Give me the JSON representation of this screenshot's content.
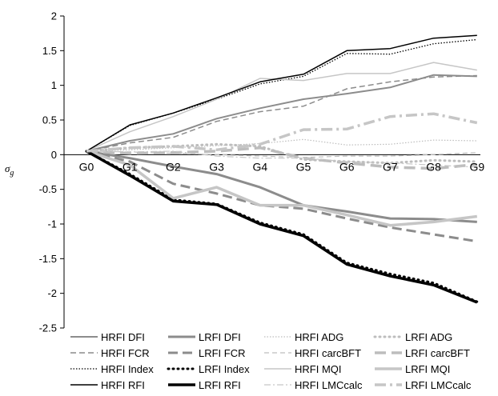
{
  "chart_data": {
    "type": "line",
    "ylabel_main": "σ",
    "ylabel_sub": "g",
    "categories": [
      "G0",
      "G1",
      "G2",
      "G3",
      "G4",
      "G5",
      "G6",
      "G7",
      "G8",
      "G9"
    ],
    "ylim": [
      -2.5,
      2
    ],
    "yticks": [
      2,
      1.5,
      1,
      0.5,
      0,
      -0.5,
      -1,
      -1.5,
      -2,
      -2.5
    ],
    "ytick_labels": [
      "2",
      "1.5",
      "1",
      "0.5",
      "0",
      "-0.5",
      "-1",
      "-1.5",
      "-2",
      "-2.5"
    ],
    "grid": false,
    "legend_position": "bottom",
    "series": [
      {
        "name": "HRFI DFI",
        "color": "#8c8c8c",
        "width": 2,
        "dash": "",
        "values": [
          0.05,
          0.2,
          0.3,
          0.52,
          0.67,
          0.8,
          0.88,
          0.97,
          1.15,
          1.13
        ]
      },
      {
        "name": "LRFI DFI",
        "color": "#8c8c8c",
        "width": 3,
        "dash": "",
        "values": [
          0.05,
          -0.05,
          -0.17,
          -0.28,
          -0.47,
          -0.73,
          -0.82,
          -0.92,
          -0.93,
          -0.97
        ]
      },
      {
        "name": "HRFI ADG",
        "color": "#bdbdbd",
        "width": 1.2,
        "dash": "1.5,2",
        "values": [
          0.05,
          0.07,
          0.1,
          0.13,
          0.16,
          0.22,
          0.14,
          0.15,
          0.21,
          0.2
        ]
      },
      {
        "name": "LRFI ADG",
        "color": "#bdbdbd",
        "width": 3,
        "dash": "1,5",
        "linecap": "round",
        "values": [
          0.05,
          0.1,
          0.12,
          0.15,
          0.12,
          -0.07,
          -0.1,
          -0.12,
          -0.08,
          -0.1
        ]
      },
      {
        "name": "HRFI FCR",
        "color": "#8c8c8c",
        "width": 1.5,
        "dash": "7,4",
        "values": [
          0.05,
          0.17,
          0.25,
          0.48,
          0.62,
          0.7,
          0.95,
          1.05,
          1.12,
          1.14
        ]
      },
      {
        "name": "LRFI FCR",
        "color": "#8c8c8c",
        "width": 3,
        "dash": "12,6",
        "values": [
          0.05,
          -0.1,
          -0.42,
          -0.56,
          -0.73,
          -0.78,
          -0.92,
          -1.05,
          -1.15,
          -1.25
        ]
      },
      {
        "name": "HRFI carcBFT",
        "color": "#bdbdbd",
        "width": 1.2,
        "dash": "6,4",
        "values": [
          0.05,
          0.04,
          0.02,
          0.0,
          -0.02,
          -0.04,
          -0.02,
          -0.02,
          0.0,
          0.03
        ]
      },
      {
        "name": "LRFI carcBFT",
        "color": "#bdbdbd",
        "width": 3.5,
        "dash": "14,7",
        "values": [
          0.05,
          0.02,
          0.03,
          0.05,
          0.1,
          -0.05,
          -0.12,
          -0.18,
          -0.2,
          -0.14
        ]
      },
      {
        "name": "HRFI Index",
        "color": "#000000",
        "width": 1.3,
        "dash": "1.5,2",
        "values": [
          0.05,
          0.42,
          0.6,
          0.8,
          1.02,
          1.13,
          1.46,
          1.45,
          1.6,
          1.66
        ]
      },
      {
        "name": "LRFI Index",
        "color": "#000000",
        "width": 3,
        "dash": "1,5",
        "linecap": "round",
        "values": [
          0.05,
          -0.28,
          -0.65,
          -0.71,
          -0.98,
          -1.15,
          -1.56,
          -1.72,
          -1.85,
          -2.12
        ]
      },
      {
        "name": "HRFI MQI",
        "color": "#c6c6c6",
        "width": 1.5,
        "dash": "",
        "values": [
          0.05,
          0.33,
          0.55,
          0.8,
          1.1,
          1.07,
          1.17,
          1.17,
          1.33,
          1.22
        ]
      },
      {
        "name": "LRFI MQI",
        "color": "#c6c6c6",
        "width": 3.5,
        "dash": "",
        "values": [
          0.05,
          -0.15,
          -0.63,
          -0.47,
          -0.73,
          -0.73,
          -0.87,
          -1.02,
          -0.97,
          -0.89
        ]
      },
      {
        "name": "HRFI RFI",
        "color": "#000000",
        "width": 1.5,
        "dash": "",
        "values": [
          0.05,
          0.43,
          0.6,
          0.82,
          1.05,
          1.16,
          1.5,
          1.53,
          1.68,
          1.72
        ]
      },
      {
        "name": "LRFI RFI",
        "color": "#000000",
        "width": 3.5,
        "dash": "",
        "values": [
          0.05,
          -0.3,
          -0.67,
          -0.72,
          -1.0,
          -1.17,
          -1.58,
          -1.75,
          -1.88,
          -2.13
        ]
      },
      {
        "name": "HRFI LMCcalc",
        "color": "#c6c6c6",
        "width": 1.2,
        "dash": "8,3,2,3",
        "values": [
          0.05,
          0.04,
          0.05,
          -0.02,
          -0.05,
          -0.05,
          -0.1,
          -0.12,
          -0.15,
          -0.18
        ]
      },
      {
        "name": "LRFI LMCcalc",
        "color": "#c6c6c6",
        "width": 3.5,
        "dash": "14,5,3,5",
        "values": [
          0.05,
          0.1,
          0.12,
          0.07,
          0.15,
          0.36,
          0.37,
          0.55,
          0.59,
          0.46
        ]
      }
    ],
    "legend_order": [
      [
        "HRFI DFI",
        "LRFI DFI",
        "HRFI ADG",
        "LRFI ADG"
      ],
      [
        "HRFI FCR",
        "LRFI FCR",
        "HRFI carcBFT",
        "LRFI carcBFT"
      ],
      [
        "HRFI Index",
        "LRFI Index",
        "HRFI MQI",
        "LRFI MQI"
      ],
      [
        "HRFI RFI",
        "LRFI RFI",
        "HRFI LMCcalc",
        "LRFI LMCcalc"
      ]
    ]
  }
}
